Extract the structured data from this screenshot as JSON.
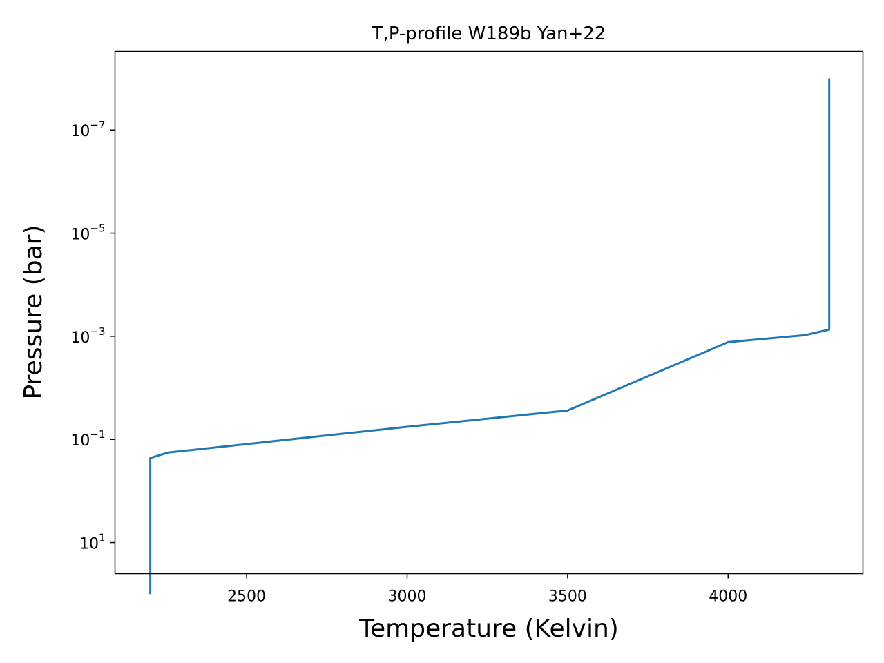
{
  "chart_data": {
    "type": "line",
    "title": "T,P-profile W189b Yan+22",
    "xlabel": "Temperature (Kelvin)",
    "ylabel": "Pressure (bar)",
    "xlim": [
      2090,
      4420
    ],
    "ylim": [
      40,
      3e-09
    ],
    "yscale": "log",
    "y_inverted": true,
    "grid": false,
    "x_ticks": [
      2500,
      3000,
      3500,
      4000
    ],
    "y_ticks": [
      {
        "base": "10",
        "exp": "−7",
        "value": 1e-07
      },
      {
        "base": "10",
        "exp": "−5",
        "value": 1e-05
      },
      {
        "base": "10",
        "exp": "−3",
        "value": 0.001
      },
      {
        "base": "10",
        "exp": "−1",
        "value": 0.1
      },
      {
        "base": "10",
        "exp": "1",
        "value": 10
      }
    ],
    "series": [
      {
        "color": "#1f77b4",
        "x": [
          2200,
          2200,
          2255,
          3000,
          3500,
          4000,
          4240,
          4315,
          4315
        ],
        "y": [
          100,
          0.23,
          0.18,
          0.057,
          0.0275,
          0.0013,
          0.00095,
          0.00074,
          1e-08
        ]
      }
    ]
  }
}
